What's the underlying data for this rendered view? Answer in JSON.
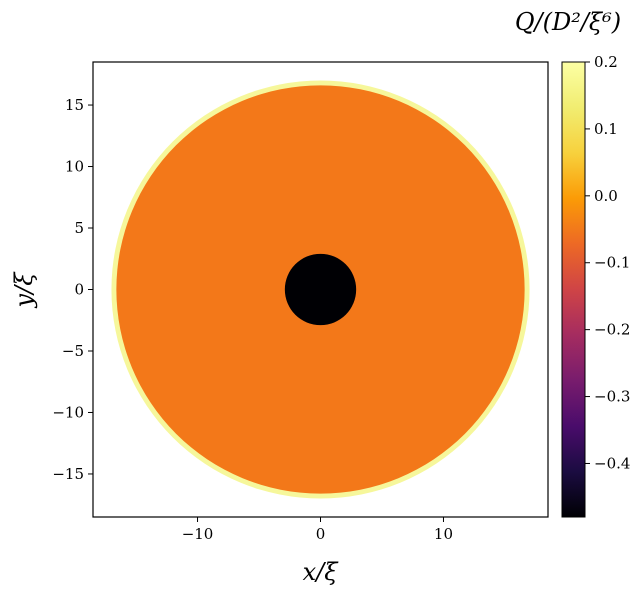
{
  "chart_data": {
    "type": "heatmap",
    "title": "",
    "xlabel": "x/ξ",
    "ylabel": "y/ξ",
    "xlim": [
      -18.5,
      18.5
    ],
    "ylim": [
      -18.5,
      18.5
    ],
    "xticks": [
      -10,
      0,
      10
    ],
    "yticks": [
      -15,
      -10,
      -5,
      0,
      5,
      10,
      15
    ],
    "xtick_labels": [
      "−10",
      "0",
      "10"
    ],
    "ytick_labels": [
      "−15",
      "−10",
      "−5",
      "0",
      "5",
      "10",
      "15"
    ],
    "grid": false,
    "colormap": "inferno",
    "colorbar": {
      "label": "Q/(D²/ξ⁶)",
      "range": [
        -0.48,
        0.2
      ],
      "ticks": [
        0.2,
        0.1,
        0.0,
        -0.1,
        -0.2,
        -0.3,
        -0.4
      ],
      "tick_labels": [
        "0.2",
        "0.1",
        "0.0",
        "−0.1",
        "−0.2",
        "−0.3",
        "−0.4"
      ]
    },
    "regions": [
      {
        "name": "outer rim",
        "shape": "disk",
        "center": [
          0,
          0
        ],
        "radius": 17.0,
        "value": 0.2,
        "color": "#f6f79b"
      },
      {
        "name": "bulk",
        "shape": "disk",
        "center": [
          0,
          0
        ],
        "radius": 16.6,
        "value": 0.0,
        "color": "#f37819"
      },
      {
        "name": "core",
        "shape": "disk",
        "center": [
          0,
          0
        ],
        "radius": 2.9,
        "value": -0.48,
        "color": "#000004"
      }
    ]
  }
}
